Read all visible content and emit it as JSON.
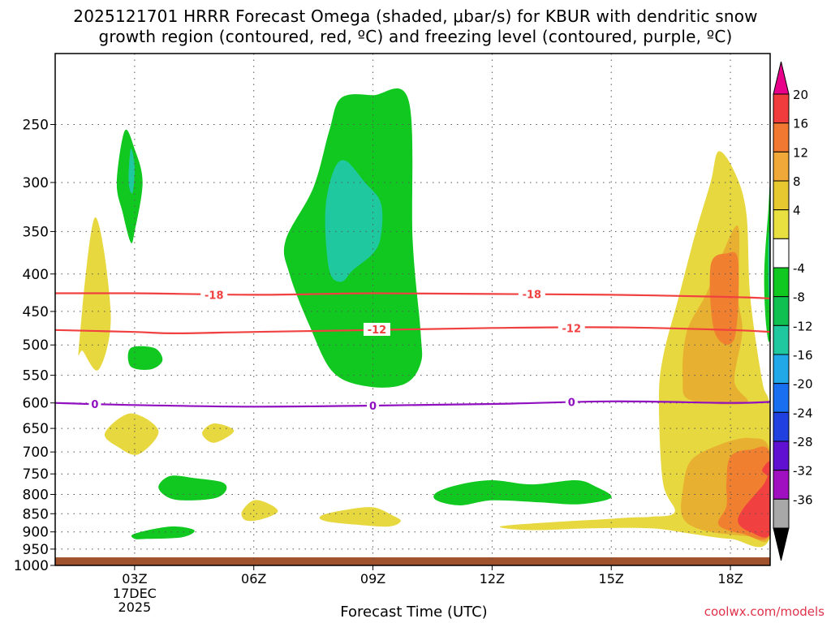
{
  "title": {
    "line1": "2025121701 HRRR Forecast Omega (shaded, μbar/s) for KBUR with dendritic snow",
    "line2": "growth region (contoured, red, ºC) and freezing level (contoured, purple, ºC)"
  },
  "credit": "coolwx.com/models",
  "chart_data": {
    "type": "contour",
    "title": "2025121701 HRRR Forecast Omega (shaded, μbar/s) for KBUR with dendritic snow growth region (contoured, red, ºC) and freezing level (contoured, purple, ºC)",
    "xlabel": "Forecast Time (UTC)",
    "ylabel": "",
    "x_ticks": [
      "03Z",
      "06Z",
      "09Z",
      "12Z",
      "15Z",
      "18Z"
    ],
    "x_tick_hours": [
      3,
      6,
      9,
      12,
      15,
      18
    ],
    "x_start_label": [
      "17DEC",
      "2025"
    ],
    "xlim_hours": [
      1,
      19
    ],
    "y_ticks": [
      250,
      300,
      350,
      400,
      450,
      500,
      550,
      600,
      650,
      700,
      750,
      800,
      850,
      900,
      950,
      1000
    ],
    "y_scale": "log-pressure (inverted)",
    "ylim": [
      1000,
      200
    ],
    "grid": true,
    "colorbar": {
      "labels": [
        "20",
        "16",
        "12",
        "8",
        "4",
        "-4",
        "-8",
        "-12",
        "-16",
        "-20",
        "-24",
        "-28",
        "-32",
        "-36"
      ],
      "colors": [
        "#e8008a",
        "#f03c3c",
        "#f07830",
        "#f0a838",
        "#e8c830",
        "#e8e040",
        "#ffffff",
        "#10c820",
        "#10c050",
        "#20c8a0",
        "#20a8e8",
        "#1870f0",
        "#2040e0",
        "#6010d0",
        "#a010c0",
        "#a8a8a8",
        "#000000"
      ]
    },
    "contours": [
      {
        "name": "-18",
        "color": "#f04040",
        "hours": [
          1,
          3,
          6,
          9,
          12,
          15,
          18,
          19
        ],
        "pressure": [
          425,
          425,
          427,
          425,
          426,
          427,
          430,
          432
        ]
      },
      {
        "name": "-12",
        "color": "#f04040",
        "hours": [
          1,
          3,
          4,
          6,
          9,
          12,
          15,
          18,
          19
        ],
        "pressure": [
          477,
          480,
          482,
          480,
          477,
          474,
          473,
          477,
          480
        ]
      },
      {
        "name": "0",
        "color": "#9010c0",
        "hours": [
          1,
          3,
          6,
          9,
          12,
          15,
          18,
          19
        ],
        "pressure": [
          600,
          604,
          607,
          605,
          602,
          597,
          600,
          598
        ]
      }
    ],
    "contour_labels": [
      {
        "text": "-18",
        "hour": 5.0,
        "pressure": 427
      },
      {
        "text": "-18",
        "hour": 13.0,
        "pressure": 426
      },
      {
        "text": "-12",
        "hour": 9.1,
        "pressure": 476
      },
      {
        "text": "-12",
        "hour": 14.0,
        "pressure": 474
      },
      {
        "text": "0",
        "hour": 2.0,
        "pressure": 602
      },
      {
        "text": "0",
        "hour": 9.0,
        "pressure": 605
      },
      {
        "text": "0",
        "hour": 14.0,
        "pressure": 598
      }
    ],
    "omega_regions": [
      {
        "value": "4",
        "color": "#e8d840",
        "pts": [
          [
            1.6,
            500
          ],
          [
            2.0,
            335
          ],
          [
            2.4,
            455
          ],
          [
            2.1,
            540
          ],
          [
            1.7,
            510
          ]
        ]
      },
      {
        "value": "-4",
        "color": "#10c820",
        "pts": [
          [
            2.55,
            300
          ],
          [
            2.75,
            255
          ],
          [
            3.0,
            270
          ],
          [
            3.2,
            300
          ],
          [
            3.0,
            350
          ],
          [
            2.9,
            362
          ],
          [
            2.7,
            330
          ]
        ]
      },
      {
        "value": "-8",
        "color": "#20c8a0",
        "pts": [
          [
            2.9,
            270
          ],
          [
            3.0,
            285
          ],
          [
            2.95,
            310
          ],
          [
            2.85,
            300
          ]
        ]
      },
      {
        "value": "-4",
        "color": "#10c820",
        "pts": [
          [
            6.8,
            360
          ],
          [
            7.5,
            305
          ],
          [
            7.9,
            255
          ],
          [
            8.2,
            230
          ],
          [
            9.0,
            228
          ],
          [
            9.9,
            232
          ],
          [
            10.0,
            360
          ],
          [
            10.2,
            480
          ],
          [
            10.2,
            530
          ],
          [
            9.8,
            565
          ],
          [
            8.9,
            570
          ],
          [
            8.0,
            545
          ],
          [
            7.4,
            470
          ],
          [
            6.9,
            400
          ]
        ]
      },
      {
        "value": "-8",
        "color": "#20c8a0",
        "pts": [
          [
            7.8,
            330
          ],
          [
            8.0,
            290
          ],
          [
            8.3,
            280
          ],
          [
            8.8,
            300
          ],
          [
            9.2,
            320
          ],
          [
            9.2,
            355
          ],
          [
            9.0,
            375
          ],
          [
            8.5,
            395
          ],
          [
            8.2,
            410
          ],
          [
            7.9,
            395
          ]
        ]
      },
      {
        "value": "-4",
        "color": "#10c820",
        "pts": [
          [
            2.9,
            505
          ],
          [
            3.5,
            505
          ],
          [
            3.7,
            525
          ],
          [
            3.4,
            540
          ],
          [
            2.9,
            535
          ]
        ]
      },
      {
        "value": "4",
        "color": "#e8d840",
        "pts": [
          [
            2.25,
            660
          ],
          [
            2.9,
            620
          ],
          [
            3.6,
            655
          ],
          [
            3.1,
            705
          ],
          [
            2.6,
            690
          ]
        ]
      },
      {
        "value": "4",
        "color": "#e8d840",
        "pts": [
          [
            4.7,
            660
          ],
          [
            5.0,
            640
          ],
          [
            5.5,
            655
          ],
          [
            5.0,
            680
          ]
        ]
      },
      {
        "value": "-4",
        "color": "#10c820",
        "pts": [
          [
            3.6,
            780
          ],
          [
            3.9,
            755
          ],
          [
            4.5,
            760
          ],
          [
            5.2,
            770
          ],
          [
            5.3,
            790
          ],
          [
            5.0,
            810
          ],
          [
            4.2,
            815
          ],
          [
            3.8,
            805
          ]
        ]
      },
      {
        "value": "4",
        "color": "#e8d840",
        "pts": [
          [
            5.7,
            845
          ],
          [
            6.0,
            815
          ],
          [
            6.4,
            825
          ],
          [
            6.6,
            845
          ],
          [
            6.2,
            865
          ],
          [
            5.8,
            868
          ]
        ]
      },
      {
        "value": "4",
        "color": "#e8d840",
        "pts": [
          [
            7.7,
            855
          ],
          [
            8.3,
            840
          ],
          [
            9.0,
            833
          ],
          [
            9.5,
            855
          ],
          [
            9.7,
            870
          ],
          [
            9.4,
            885
          ],
          [
            8.6,
            880
          ],
          [
            7.8,
            870
          ]
        ]
      },
      {
        "value": "-4",
        "color": "#10c820",
        "pts": [
          [
            3.0,
            905
          ],
          [
            3.9,
            885
          ],
          [
            4.5,
            895
          ],
          [
            4.2,
            915
          ],
          [
            3.3,
            920
          ],
          [
            3.0,
            920
          ]
        ]
      },
      {
        "value": "-4",
        "color": "#10c820",
        "pts": [
          [
            10.6,
            795
          ],
          [
            11.2,
            775
          ],
          [
            12.0,
            765
          ],
          [
            13.0,
            775
          ],
          [
            14.1,
            765
          ],
          [
            14.6,
            780
          ],
          [
            15.0,
            808
          ],
          [
            14.2,
            825
          ],
          [
            13.2,
            820
          ],
          [
            12.0,
            815
          ],
          [
            11.2,
            828
          ],
          [
            10.6,
            815
          ]
        ]
      },
      {
        "value": "4",
        "color": "#e8d840",
        "pts": [
          [
            12.2,
            885
          ],
          [
            13.5,
            873
          ],
          [
            14.8,
            865
          ],
          [
            15.5,
            860
          ],
          [
            16.0,
            858
          ],
          [
            16.6,
            845
          ],
          [
            16.3,
            770
          ],
          [
            16.2,
            600
          ],
          [
            16.3,
            520
          ],
          [
            16.7,
            430
          ],
          [
            17.1,
            355
          ],
          [
            17.5,
            300
          ],
          [
            17.7,
            272
          ],
          [
            18.1,
            290
          ],
          [
            18.4,
            330
          ],
          [
            18.5,
            430
          ],
          [
            18.8,
            560
          ],
          [
            19.0,
            620
          ],
          [
            19.0,
            915
          ],
          [
            18.0,
            920
          ],
          [
            17.0,
            905
          ],
          [
            16.0,
            890
          ],
          [
            14.5,
            890
          ],
          [
            13.0,
            895
          ]
        ]
      },
      {
        "value": "8",
        "color": "#e8b030",
        "pts": [
          [
            16.9,
            480
          ],
          [
            17.4,
            425
          ],
          [
            17.8,
            375
          ],
          [
            18.2,
            345
          ],
          [
            18.2,
            430
          ],
          [
            18.3,
            480
          ],
          [
            18.1,
            560
          ],
          [
            18.4,
            600
          ],
          [
            17.0,
            595
          ],
          [
            16.8,
            555
          ]
        ]
      },
      {
        "value": "8",
        "color": "#e8b030",
        "pts": [
          [
            17.0,
            720
          ],
          [
            17.7,
            685
          ],
          [
            18.5,
            670
          ],
          [
            19.0,
            700
          ],
          [
            19.0,
            910
          ],
          [
            18.4,
            912
          ],
          [
            17.3,
            895
          ],
          [
            16.8,
            860
          ],
          [
            16.8,
            790
          ]
        ]
      },
      {
        "value": "12",
        "color": "#f08030",
        "pts": [
          [
            17.5,
            390
          ],
          [
            17.9,
            375
          ],
          [
            18.2,
            385
          ],
          [
            18.1,
            490
          ],
          [
            17.6,
            480
          ]
        ]
      },
      {
        "value": "12",
        "color": "#f08030",
        "pts": [
          [
            17.9,
            770
          ],
          [
            18.0,
            710
          ],
          [
            18.5,
            695
          ],
          [
            19.0,
            705
          ],
          [
            19.0,
            905
          ],
          [
            18.3,
            905
          ],
          [
            17.7,
            880
          ],
          [
            17.9,
            830
          ]
        ]
      },
      {
        "value": "16",
        "color": "#f04040",
        "pts": [
          [
            18.3,
            840
          ],
          [
            18.8,
            780
          ],
          [
            19.0,
            760
          ],
          [
            19.0,
            905
          ],
          [
            18.5,
            900
          ],
          [
            18.2,
            875
          ]
        ]
      },
      {
        "value": "16",
        "color": "#f04040",
        "pts": [
          [
            18.8,
            740
          ],
          [
            19.0,
            720
          ],
          [
            19.0,
            755
          ],
          [
            18.9,
            752
          ]
        ]
      },
      {
        "value": "-4",
        "color": "#10c820",
        "pts": [
          [
            18.85,
            400
          ],
          [
            18.95,
            330
          ],
          [
            19.0,
            310
          ],
          [
            19.0,
            480
          ],
          [
            18.9,
            470
          ]
        ]
      },
      {
        "value": "-8",
        "color": "#20c8a0",
        "pts": [
          [
            18.95,
            370
          ],
          [
            19.0,
            350
          ],
          [
            19.0,
            440
          ],
          [
            18.97,
            430
          ]
        ]
      }
    ],
    "ground": {
      "color": "#a0522d",
      "from_pressure": 975
    }
  }
}
